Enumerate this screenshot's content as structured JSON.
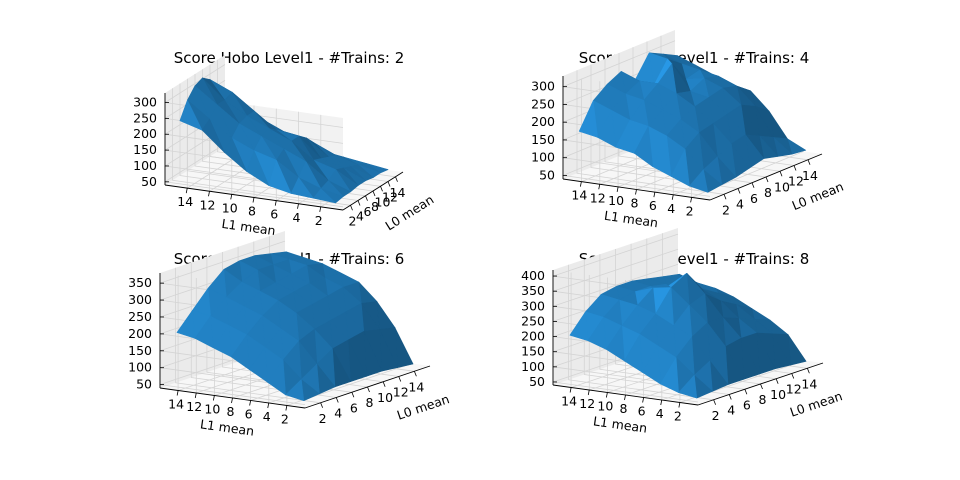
{
  "chart_data": [
    {
      "type": "surface3d",
      "title": "Score Hobo Level1 - #Trains: 2",
      "xlabel": "L0 mean",
      "ylabel": "L1 mean",
      "xticks": [
        "2",
        "4",
        "6",
        "8",
        "10",
        "12",
        "14"
      ],
      "yticks": [
        "14",
        "12",
        "10",
        "8",
        "6",
        "4",
        "2"
      ],
      "zticks": [
        "50",
        "100",
        "150",
        "200",
        "250",
        "300"
      ],
      "zlim": [
        40,
        330
      ],
      "x": [
        1,
        3,
        5,
        7,
        9,
        11,
        13,
        15
      ],
      "y": [
        1,
        3,
        5,
        7,
        9,
        11,
        13,
        15
      ],
      "z": [
        [
          50,
          55,
          55,
          60,
          60,
          55,
          55,
          50
        ],
        [
          55,
          70,
          80,
          100,
          90,
          80,
          70,
          60
        ],
        [
          60,
          95,
          130,
          120,
          110,
          100,
          90,
          70
        ],
        [
          75,
          140,
          160,
          170,
          170,
          150,
          120,
          80
        ],
        [
          110,
          160,
          190,
          200,
          180,
          160,
          130,
          90
        ],
        [
          160,
          190,
          220,
          230,
          230,
          190,
          150,
          110
        ],
        [
          220,
          240,
          270,
          270,
          280,
          240,
          190,
          140
        ],
        [
          240,
          290,
          320,
          330,
          310,
          270,
          220,
          160
        ]
      ]
    },
    {
      "type": "surface3d",
      "title": "Score Hobo Level1 - #Trains: 4",
      "xlabel": "L0 mean",
      "ylabel": "L1 mean",
      "xticks": [
        "2",
        "4",
        "6",
        "8",
        "10",
        "12",
        "14"
      ],
      "yticks": [
        "14",
        "12",
        "10",
        "8",
        "6",
        "4",
        "2"
      ],
      "zticks": [
        "50",
        "100",
        "150",
        "200",
        "250",
        "300"
      ],
      "zlim": [
        40,
        330
      ],
      "x": [
        1,
        3,
        5,
        7,
        9,
        11,
        13,
        15
      ],
      "y": [
        1,
        3,
        5,
        7,
        9,
        11,
        13,
        15
      ],
      "z": [
        [
          50,
          55,
          60,
          70,
          80,
          70,
          60,
          55
        ],
        [
          60,
          90,
          110,
          130,
          140,
          120,
          100,
          80
        ],
        [
          80,
          140,
          170,
          180,
          190,
          200,
          180,
          150
        ],
        [
          100,
          170,
          200,
          220,
          230,
          240,
          230,
          200
        ],
        [
          130,
          190,
          220,
          250,
          240,
          260,
          250,
          210
        ],
        [
          140,
          200,
          240,
          270,
          310,
          250,
          260,
          230
        ],
        [
          160,
          220,
          250,
          270,
          240,
          300,
          270,
          250
        ],
        [
          170,
          240,
          270,
          290,
          250,
          310,
          290,
          270
        ]
      ]
    },
    {
      "type": "surface3d",
      "title": "Score Hobo Level1 - #Trains: 6",
      "xlabel": "L0 mean",
      "ylabel": "L1 mean",
      "xticks": [
        "2",
        "4",
        "6",
        "8",
        "10",
        "12",
        "14"
      ],
      "yticks": [
        "14",
        "12",
        "10",
        "8",
        "6",
        "4",
        "2"
      ],
      "zticks": [
        "50",
        "100",
        "150",
        "200",
        "250",
        "300",
        "350"
      ],
      "zlim": [
        40,
        380
      ],
      "x": [
        1,
        3,
        5,
        7,
        9,
        11,
        13,
        15
      ],
      "y": [
        1,
        3,
        5,
        7,
        9,
        11,
        13,
        15
      ],
      "z": [
        [
          50,
          55,
          60,
          60,
          60,
          60,
          55,
          50
        ],
        [
          60,
          90,
          120,
          150,
          160,
          170,
          160,
          150
        ],
        [
          90,
          140,
          180,
          200,
          210,
          220,
          230,
          220
        ],
        [
          120,
          170,
          210,
          240,
          250,
          260,
          270,
          270
        ],
        [
          150,
          200,
          240,
          270,
          280,
          290,
          290,
          290
        ],
        [
          170,
          220,
          260,
          290,
          300,
          310,
          320,
          310
        ],
        [
          190,
          240,
          280,
          310,
          330,
          330,
          330,
          320
        ],
        [
          200,
          250,
          300,
          340,
          350,
          350,
          340,
          330
        ]
      ]
    },
    {
      "type": "surface3d",
      "title": "Score Hobo Level1 - #Trains: 8",
      "xlabel": "L0 mean",
      "ylabel": "L1 mean",
      "xticks": [
        "2",
        "4",
        "6",
        "8",
        "10",
        "12",
        "14"
      ],
      "yticks": [
        "14",
        "12",
        "10",
        "8",
        "6",
        "4",
        "2"
      ],
      "zticks": [
        "50",
        "100",
        "150",
        "200",
        "250",
        "300",
        "350",
        "400"
      ],
      "zlim": [
        40,
        420
      ],
      "x": [
        1,
        3,
        5,
        7,
        9,
        11,
        13,
        15
      ],
      "y": [
        1,
        3,
        5,
        7,
        9,
        11,
        13,
        15
      ],
      "z": [
        [
          50,
          55,
          60,
          60,
          60,
          60,
          55,
          50
        ],
        [
          60,
          100,
          130,
          160,
          170,
          170,
          150,
          130
        ],
        [
          80,
          150,
          200,
          230,
          230,
          210,
          190,
          170
        ],
        [
          110,
          180,
          230,
          280,
          300,
          260,
          230,
          200
        ],
        [
          140,
          210,
          260,
          330,
          360,
          290,
          260,
          230
        ],
        [
          170,
          230,
          280,
          320,
          310,
          290,
          270,
          250
        ],
        [
          190,
          250,
          290,
          300,
          300,
          290,
          280,
          260
        ],
        [
          200,
          260,
          300,
          310,
          310,
          300,
          290,
          280
        ]
      ]
    }
  ]
}
